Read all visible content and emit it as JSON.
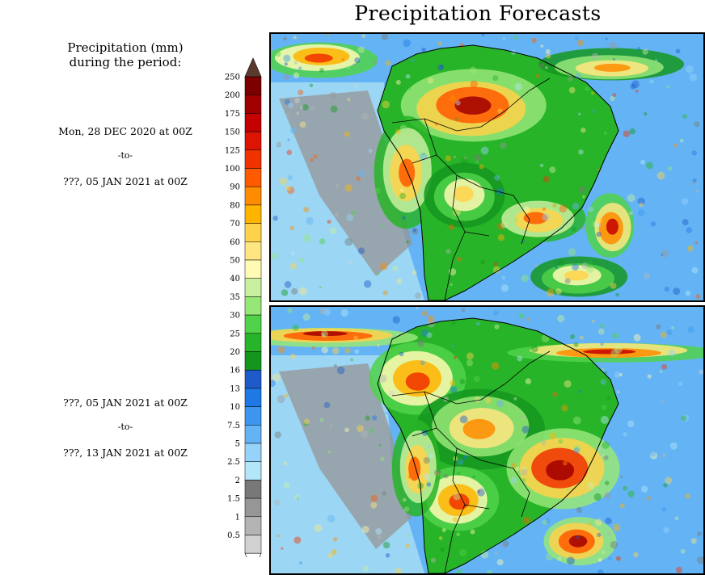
{
  "title": "Precipitation Forecasts",
  "legend_title_line1": "Precipitation (mm)",
  "legend_title_line2": "during the period:",
  "periods": [
    {
      "start": "Mon, 28 DEC 2020 at 00Z",
      "separator": "-to-",
      "end": "???, 05 JAN 2021 at 00Z"
    },
    {
      "start": "???, 05 JAN 2021 at 00Z",
      "separator": "-to-",
      "end": "???, 13 JAN 2021 at 00Z"
    }
  ],
  "chart_data": {
    "type": "heatmap",
    "title": "Precipitation Forecasts",
    "units": "mm",
    "region": "South America",
    "colorbar": {
      "levels": [
        "250",
        "200",
        "175",
        "150",
        "125",
        "100",
        "90",
        "80",
        "70",
        "60",
        "50",
        "40",
        "35",
        "30",
        "25",
        "20",
        "16",
        "13",
        "10",
        "7.5",
        "5",
        "2.5",
        "2",
        "1.5",
        "1",
        "0.5"
      ],
      "colors": [
        "#5b3a2e",
        "#7d0000",
        "#a00000",
        "#c40000",
        "#dc1400",
        "#f03200",
        "#ff5a00",
        "#ff8c00",
        "#ffb400",
        "#ffd24a",
        "#ffe680",
        "#fffab4",
        "#c8f0a0",
        "#96e678",
        "#50d24a",
        "#28b428",
        "#14961e",
        "#1e5ac8",
        "#1e78e6",
        "#3c96f0",
        "#64b4f5",
        "#96d2fa",
        "#b4e6fa",
        "#787878",
        "#969696",
        "#b4b4b4",
        "#d2d2d2"
      ]
    },
    "panels": [
      {
        "period": "28 DEC 2020 00Z - 05 JAN 2021 00Z"
      },
      {
        "period": "05 JAN 2021 00Z - 13 JAN 2021 00Z"
      }
    ]
  }
}
